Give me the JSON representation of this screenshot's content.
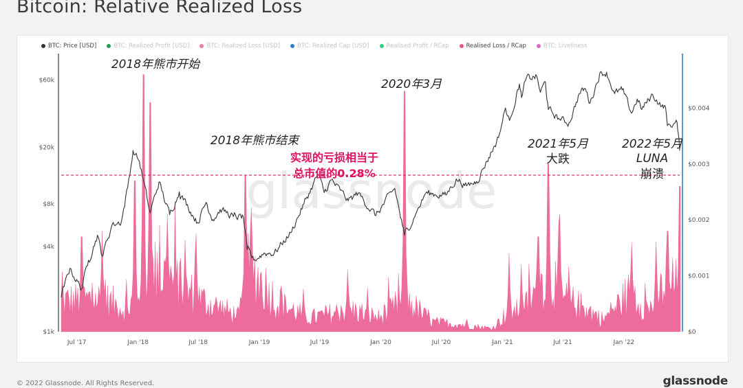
{
  "title": "Bitcoin: Relative Realized Loss",
  "legend": [
    {
      "label": "BTC: Price [USD]",
      "color": "#333333",
      "active": true
    },
    {
      "label": "BTC: Realized Profit [USD]",
      "color": "#1e9e4a",
      "active": false
    },
    {
      "label": "BTC: Realized Loss [USD]",
      "color": "#f07aa9",
      "active": false
    },
    {
      "label": "BTC: Realized Cap [USD]",
      "color": "#2f7fd0",
      "active": false
    },
    {
      "label": "Realised Profit / RCap",
      "color": "#33cc77",
      "active": false
    },
    {
      "label": "Realised Loss / RCap",
      "color": "#e05a8e",
      "active": true
    },
    {
      "label": "BTC: Liveliness",
      "color": "#d36cc7",
      "active": false
    }
  ],
  "watermark": "glassnode",
  "footer": {
    "copyright": "© 2022 Glassnode. All Rights Reserved.",
    "brand": "glassnode"
  },
  "colors": {
    "price": "#3a3a3a",
    "loss_fill": "#ec5f93",
    "reference_line": "#d81b60",
    "highlight_text": "#e0115f",
    "right_axis": "#2f7fd0"
  },
  "annotations": [
    {
      "id": "bear-start",
      "text": "2018年熊市开始"
    },
    {
      "id": "bear-end",
      "text": "2018年熊市结束"
    },
    {
      "id": "covid",
      "text": "2020年3月"
    },
    {
      "id": "may21",
      "text": "2021年5月"
    },
    {
      "id": "may21b",
      "text": "大跌"
    },
    {
      "id": "luna1",
      "text": "2022年5月"
    },
    {
      "id": "luna2",
      "text": "LUNA"
    },
    {
      "id": "luna3",
      "text": "崩溃"
    },
    {
      "id": "ratio1",
      "text": "实现的亏损相当于"
    },
    {
      "id": "ratio2",
      "text": "总市值的0.28%"
    }
  ],
  "chart_data": {
    "type": "line+area",
    "x_ticks": [
      "Jul '17",
      "Jan '18",
      "Jul '18",
      "Jan '19",
      "Jul '19",
      "Jan '20",
      "Jul '20",
      "Jan '21",
      "Jul '21",
      "Jan '22"
    ],
    "x_range": [
      "2017-05-15",
      "2022-06-20"
    ],
    "y_left": {
      "label": "",
      "scale": "log",
      "ticks": [
        "$1k",
        "$4k",
        "$8k",
        "$20k",
        "$60k"
      ],
      "tick_values": [
        1000,
        4000,
        8000,
        20000,
        60000
      ],
      "range": [
        1000,
        90000
      ]
    },
    "y_right": {
      "label": "",
      "scale": "linear",
      "ticks": [
        "$0",
        "$0.001",
        "$0.002",
        "$0.003",
        "$0.004"
      ],
      "tick_values": [
        0,
        0.001,
        0.002,
        0.003,
        0.004
      ],
      "range": [
        0,
        0.00495
      ]
    },
    "reference_line": {
      "value": 0.0028,
      "label": "0.28%"
    },
    "series": [
      {
        "name": "BTC: Price [USD]",
        "type": "line",
        "points": [
          [
            "2017-05-15",
            1750
          ],
          [
            "2017-06-10",
            2800
          ],
          [
            "2017-07-15",
            2000
          ],
          [
            "2017-08-05",
            3200
          ],
          [
            "2017-09-01",
            4800
          ],
          [
            "2017-09-15",
            3400
          ],
          [
            "2017-10-15",
            5700
          ],
          [
            "2017-11-12",
            6000
          ],
          [
            "2017-12-01",
            10500
          ],
          [
            "2017-12-17",
            19000
          ],
          [
            "2018-01-05",
            16000
          ],
          [
            "2018-02-06",
            6900
          ],
          [
            "2018-03-05",
            11400
          ],
          [
            "2018-04-06",
            6700
          ],
          [
            "2018-05-05",
            9700
          ],
          [
            "2018-06-29",
            5900
          ],
          [
            "2018-07-25",
            8200
          ],
          [
            "2018-08-14",
            6200
          ],
          [
            "2018-09-05",
            7300
          ],
          [
            "2018-10-15",
            6500
          ],
          [
            "2018-11-14",
            6400
          ],
          [
            "2018-11-25",
            3800
          ],
          [
            "2018-12-15",
            3200
          ],
          [
            "2019-01-15",
            3600
          ],
          [
            "2019-02-15",
            3600
          ],
          [
            "2019-04-05",
            5000
          ],
          [
            "2019-05-15",
            8000
          ],
          [
            "2019-06-26",
            12900
          ],
          [
            "2019-07-15",
            9600
          ],
          [
            "2019-08-05",
            11800
          ],
          [
            "2019-09-25",
            8400
          ],
          [
            "2019-10-25",
            9500
          ],
          [
            "2019-12-17",
            6600
          ],
          [
            "2020-02-12",
            10300
          ],
          [
            "2020-03-12",
            4800
          ],
          [
            "2020-04-15",
            6800
          ],
          [
            "2020-05-15",
            9500
          ],
          [
            "2020-07-15",
            9200
          ],
          [
            "2020-08-15",
            12000
          ],
          [
            "2020-09-15",
            10700
          ],
          [
            "2020-10-15",
            11500
          ],
          [
            "2020-11-15",
            16000
          ],
          [
            "2020-12-20",
            23500
          ],
          [
            "2021-01-10",
            38000
          ],
          [
            "2021-01-22",
            31000
          ],
          [
            "2021-02-21",
            56000
          ],
          [
            "2021-02-27",
            45000
          ],
          [
            "2021-03-13",
            61000
          ],
          [
            "2021-04-14",
            63500
          ],
          [
            "2021-04-25",
            49000
          ],
          [
            "2021-05-10",
            58000
          ],
          [
            "2021-05-19",
            37000
          ],
          [
            "2021-06-22",
            31500
          ],
          [
            "2021-07-20",
            29800
          ],
          [
            "2021-08-20",
            48000
          ],
          [
            "2021-09-07",
            52000
          ],
          [
            "2021-09-21",
            41000
          ],
          [
            "2021-10-20",
            66000
          ],
          [
            "2021-11-10",
            68000
          ],
          [
            "2021-12-04",
            48000
          ],
          [
            "2021-12-27",
            51000
          ],
          [
            "2022-01-24",
            35000
          ],
          [
            "2022-02-10",
            44000
          ],
          [
            "2022-02-24",
            37000
          ],
          [
            "2022-03-28",
            47500
          ],
          [
            "2022-04-25",
            39000
          ],
          [
            "2022-05-05",
            39500
          ],
          [
            "2022-05-12",
            28500
          ],
          [
            "2022-06-10",
            30000
          ],
          [
            "2022-06-18",
            19000
          ]
        ]
      },
      {
        "name": "Realised Loss / RCap",
        "type": "area",
        "base": [
          [
            "2017-05-15",
            0.00055
          ],
          [
            "2017-09-15",
            0.0006
          ],
          [
            "2017-12-01",
            0.0004
          ],
          [
            "2018-02-01",
            0.0011
          ],
          [
            "2018-04-01",
            0.001
          ],
          [
            "2018-07-01",
            0.0006
          ],
          [
            "2018-11-01",
            0.00028
          ],
          [
            "2018-12-01",
            0.0012
          ],
          [
            "2019-03-01",
            0.0005
          ],
          [
            "2019-06-01",
            0.00025
          ],
          [
            "2019-10-01",
            0.0004
          ],
          [
            "2020-01-01",
            0.00025
          ],
          [
            "2020-03-15",
            0.0006
          ],
          [
            "2020-06-01",
            0.00018
          ],
          [
            "2020-09-15",
            0.00012
          ],
          [
            "2020-12-01",
            6e-05
          ],
          [
            "2021-01-25",
            0.0004
          ],
          [
            "2021-03-01",
            0.00035
          ],
          [
            "2021-05-20",
            0.0011
          ],
          [
            "2021-07-01",
            0.0006
          ],
          [
            "2021-09-15",
            0.0004
          ],
          [
            "2021-11-01",
            0.00022
          ],
          [
            "2022-01-25",
            0.00075
          ],
          [
            "2022-03-15",
            0.0004
          ],
          [
            "2022-05-12",
            0.0009
          ],
          [
            "2022-06-20",
            0.0008
          ]
        ],
        "spikes": [
          [
            "2017-07-16",
            0.0017
          ],
          [
            "2017-09-15",
            0.0018
          ],
          [
            "2017-12-22",
            0.0027
          ],
          [
            "2018-01-17",
            0.0046
          ],
          [
            "2018-02-06",
            0.0041
          ],
          [
            "2018-03-30",
            0.0021
          ],
          [
            "2018-06-24",
            0.00175
          ],
          [
            "2018-11-20",
            0.0028
          ],
          [
            "2018-12-07",
            0.0018
          ],
          [
            "2019-09-24",
            0.0011
          ],
          [
            "2020-03-12",
            0.0043
          ],
          [
            "2021-01-21",
            0.0014
          ],
          [
            "2021-02-27",
            0.0012
          ],
          [
            "2021-04-18",
            0.0017
          ],
          [
            "2021-05-19",
            0.003
          ],
          [
            "2021-06-22",
            0.0021
          ],
          [
            "2022-01-24",
            0.0016
          ],
          [
            "2022-05-12",
            0.0018
          ],
          [
            "2022-06-18",
            0.0026
          ]
        ]
      }
    ],
    "grid": false,
    "legend_position": "top-left"
  }
}
